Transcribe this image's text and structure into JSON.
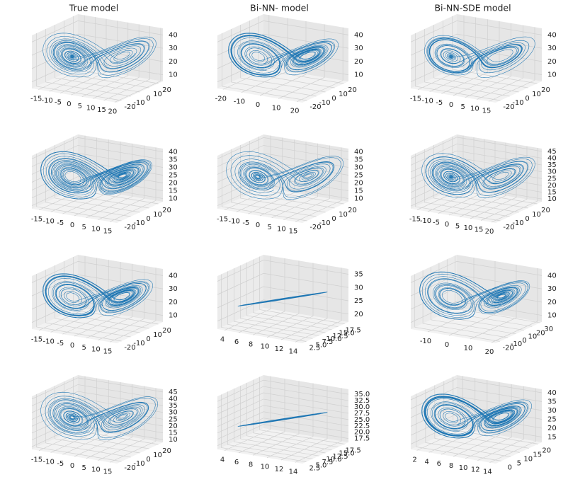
{
  "chart_data": [
    {
      "type": "line3d",
      "title": "True model",
      "xlim": [
        -18,
        21
      ],
      "xticks": [
        -15,
        -10,
        -5,
        0,
        5,
        10,
        15,
        20
      ],
      "ylim": [
        -25,
        25
      ],
      "yticks": [
        -20,
        -10,
        0,
        10,
        20
      ],
      "zlim": [
        5,
        45
      ],
      "zticks": [
        10,
        20,
        30,
        40
      ]
    },
    {
      "type": "line3d",
      "title": "Bi-NN- model",
      "xlim": [
        -23,
        23
      ],
      "xticks": [
        -20,
        -10,
        0,
        10,
        20
      ],
      "ylim": [
        -25,
        25
      ],
      "yticks": [
        -20,
        -10,
        0,
        10,
        20
      ],
      "zlim": [
        5,
        45
      ],
      "zticks": [
        10,
        20,
        30,
        40
      ]
    },
    {
      "type": "line3d",
      "title": "Bi-NN-SDE model",
      "xlim": [
        -18,
        18
      ],
      "xticks": [
        -15,
        -10,
        -5,
        0,
        5,
        10,
        15
      ],
      "ylim": [
        -25,
        25
      ],
      "yticks": [
        -20,
        -10,
        0,
        10,
        20
      ],
      "zlim": [
        5,
        45
      ],
      "zticks": [
        10,
        20,
        30,
        40
      ]
    },
    {
      "type": "line3d",
      "xlim": [
        -18,
        18
      ],
      "xticks": [
        -15,
        -10,
        -5,
        0,
        5,
        10,
        15
      ],
      "ylim": [
        -25,
        25
      ],
      "yticks": [
        -20,
        -10,
        0,
        10,
        20
      ],
      "zlim": [
        8,
        42
      ],
      "zticks": [
        10,
        15,
        20,
        25,
        30,
        35,
        40
      ]
    },
    {
      "type": "line3d",
      "xlim": [
        -18,
        18
      ],
      "xticks": [
        -15,
        -10,
        -5,
        0,
        5,
        10,
        15
      ],
      "ylim": [
        -25,
        25
      ],
      "yticks": [
        -20,
        -10,
        0,
        10,
        20
      ],
      "zlim": [
        8,
        42
      ],
      "zticks": [
        10,
        15,
        20,
        25,
        30,
        35,
        40
      ]
    },
    {
      "type": "line3d",
      "xlim": [
        -18,
        22
      ],
      "xticks": [
        -15,
        -10,
        -5,
        0,
        5,
        10,
        15,
        20
      ],
      "ylim": [
        -25,
        25
      ],
      "yticks": [
        -20,
        -10,
        0,
        10,
        20
      ],
      "zlim": [
        8,
        47
      ],
      "zticks": [
        10,
        15,
        20,
        25,
        30,
        35,
        40,
        45
      ]
    },
    {
      "type": "line3d",
      "xlim": [
        -18,
        18
      ],
      "xticks": [
        -15,
        -10,
        -5,
        0,
        5,
        10,
        15
      ],
      "ylim": [
        -25,
        25
      ],
      "yticks": [
        -20,
        -10,
        0,
        10,
        20
      ],
      "zlim": [
        5,
        45
      ],
      "zticks": [
        10,
        20,
        30,
        40
      ]
    },
    {
      "type": "spiral3d",
      "xlim": [
        3,
        15
      ],
      "xticks": [
        4,
        6,
        8,
        10,
        12,
        14
      ],
      "ylim": [
        1,
        19
      ],
      "yticks": [
        2.5,
        {
          "value": 5,
          "label": "5.0"
        },
        7.5,
        {
          "value": 10,
          "label": "10.0"
        },
        12.5,
        {
          "value": 15,
          "label": "15.0"
        },
        17.5
      ],
      "zlim": [
        17,
        37
      ],
      "zticks": [
        20,
        25,
        30,
        35
      ]
    },
    {
      "type": "line3d",
      "xlim": [
        -18,
        22
      ],
      "xticks": [
        -10,
        0,
        10,
        20
      ],
      "ylim": [
        -25,
        32
      ],
      "yticks": [
        -20,
        -10,
        0,
        10,
        20,
        30
      ],
      "zlim": [
        5,
        45
      ],
      "zticks": [
        10,
        20,
        30,
        40
      ]
    },
    {
      "type": "line3d",
      "xlim": [
        -18,
        18
      ],
      "xticks": [
        -15,
        -10,
        -5,
        0,
        5,
        10,
        15
      ],
      "ylim": [
        -25,
        25
      ],
      "yticks": [
        -20,
        -10,
        0,
        10,
        20
      ],
      "zlim": [
        8,
        47
      ],
      "zticks": [
        10,
        15,
        20,
        25,
        30,
        35,
        40,
        45
      ]
    },
    {
      "type": "spiral3d",
      "xlim": [
        3,
        15
      ],
      "xticks": [
        4,
        6,
        8,
        10,
        12,
        14
      ],
      "ylim": [
        1,
        19
      ],
      "yticks": [
        2.5,
        {
          "value": 5,
          "label": "5.0"
        },
        7.5,
        {
          "value": 10,
          "label": "10.0"
        },
        12.5,
        {
          "value": 15,
          "label": "15.0"
        },
        17.5
      ],
      "zlim": [
        16,
        37
      ],
      "zticks": [
        17.5,
        {
          "value": 20,
          "label": "20.0"
        },
        22.5,
        {
          "value": 25,
          "label": "25.0"
        },
        27.5,
        {
          "value": 30,
          "label": "30.0"
        },
        32.5,
        {
          "value": 35,
          "label": "35.0"
        }
      ]
    },
    {
      "type": "line3d",
      "xlim": [
        1,
        15
      ],
      "xticks": [
        2,
        4,
        6,
        8,
        10,
        12,
        14
      ],
      "ylim": [
        -3,
        22
      ],
      "yticks": [
        0,
        5,
        10,
        15,
        20
      ],
      "zlim": [
        12,
        42
      ],
      "zticks": [
        15,
        20,
        25,
        30,
        35,
        40
      ]
    }
  ]
}
